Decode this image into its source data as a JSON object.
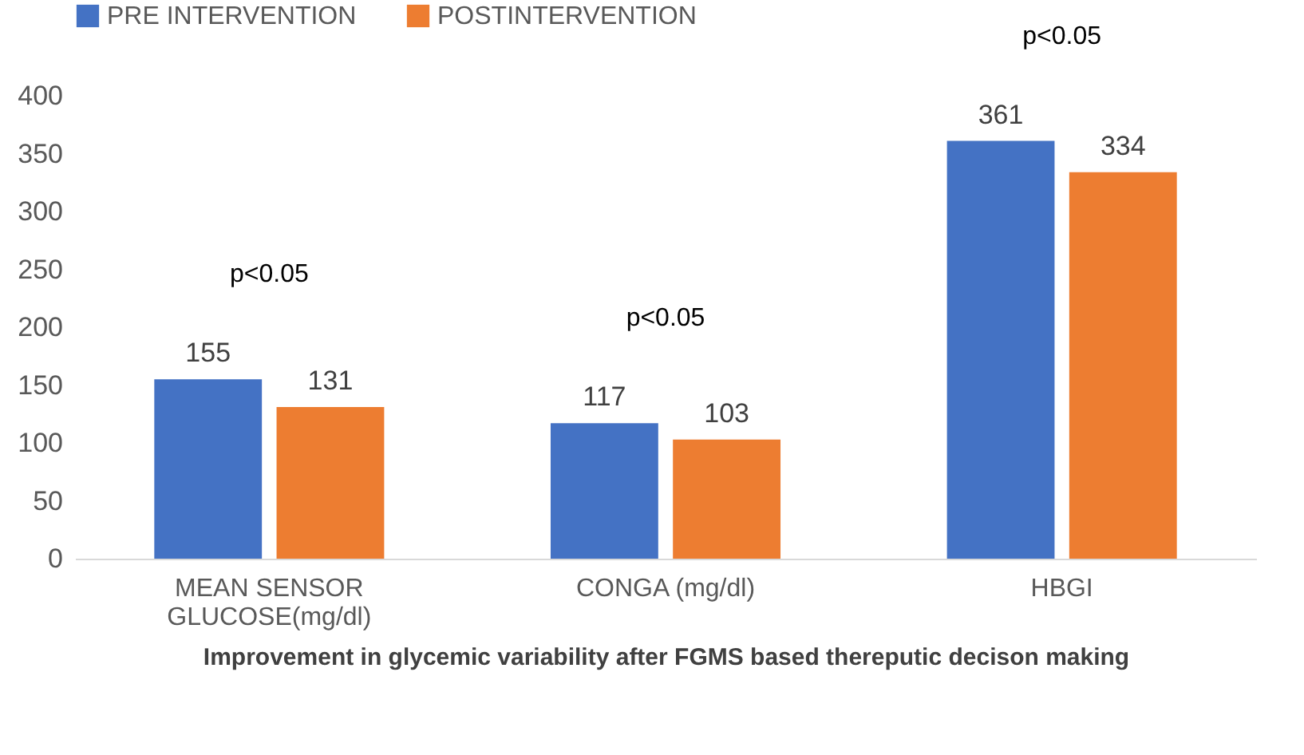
{
  "chart_data": {
    "type": "bar",
    "xlabel": "Improvement in glycemic variability after FGMS based thereputic decison making",
    "categories": [
      "MEAN SENSOR GLUCOSE(mg/dl)",
      "CONGA (mg/dl)",
      "HBGI"
    ],
    "series": [
      {
        "name": "PRE INTERVENTION",
        "color": "#4472c4",
        "values": [
          155,
          117,
          361
        ]
      },
      {
        "name": "POSTINTERVENTION",
        "color": "#ed7d31",
        "values": [
          131,
          103,
          334
        ]
      }
    ],
    "ylim": [
      0,
      400
    ],
    "yticks": [
      0,
      50,
      100,
      150,
      200,
      250,
      300,
      350,
      400
    ],
    "grid": false,
    "legend": "top",
    "data_labels": true,
    "annotations": [
      "p<0.05",
      "p<0.05",
      "p<0.05"
    ]
  }
}
